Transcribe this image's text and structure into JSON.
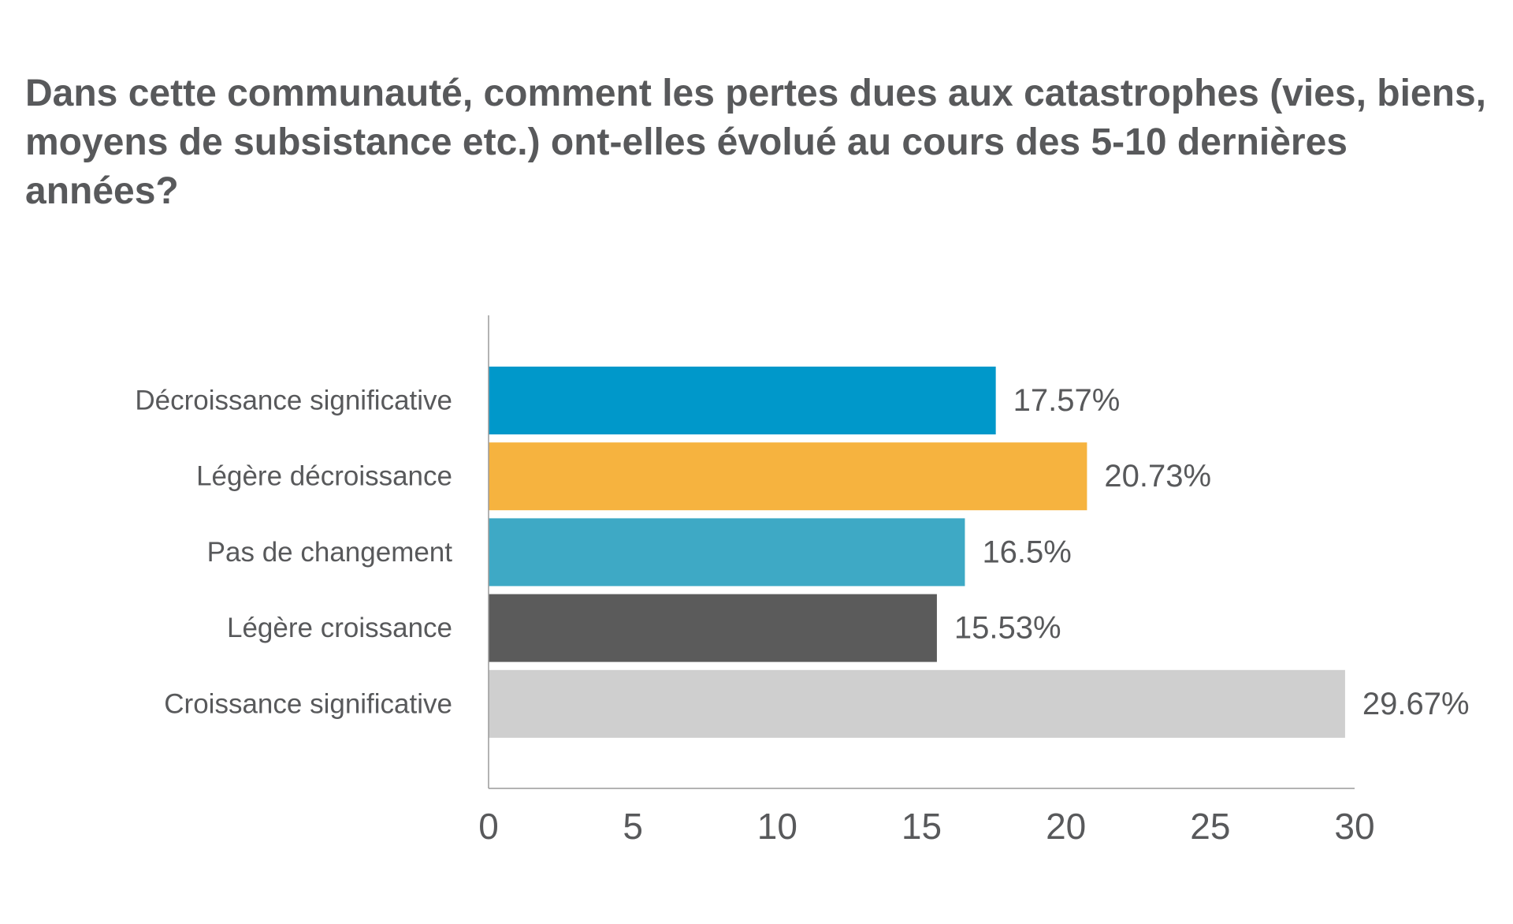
{
  "chart_data": {
    "type": "bar",
    "orientation": "horizontal",
    "title": "Dans cette communauté, comment les pertes dues aux catastrophes (vies, biens, moyens de subsistance etc.) ont-elles évolué au cours des 5-10 dernières années?",
    "categories": [
      "Décroissance significative",
      "Légère décroissance",
      "Pas de changement",
      "Légère croissance",
      "Croissance significative"
    ],
    "values": [
      17.57,
      20.73,
      16.5,
      15.53,
      29.67
    ],
    "data_labels": [
      "17.57%",
      "20.73%",
      "16.5%",
      "15.53%",
      "29.67%"
    ],
    "colors": [
      "#0098ca",
      "#f6b33f",
      "#3ea9c5",
      "#5b5b5b",
      "#cfcfcf"
    ],
    "xlim": [
      0,
      30
    ],
    "xticks": [
      0,
      5,
      10,
      15,
      20,
      25,
      30
    ],
    "xtick_labels": [
      "0",
      "5",
      "10",
      "15",
      "20",
      "25",
      "30"
    ],
    "xlabel": "",
    "ylabel": "",
    "grid": false,
    "legend": "none"
  }
}
